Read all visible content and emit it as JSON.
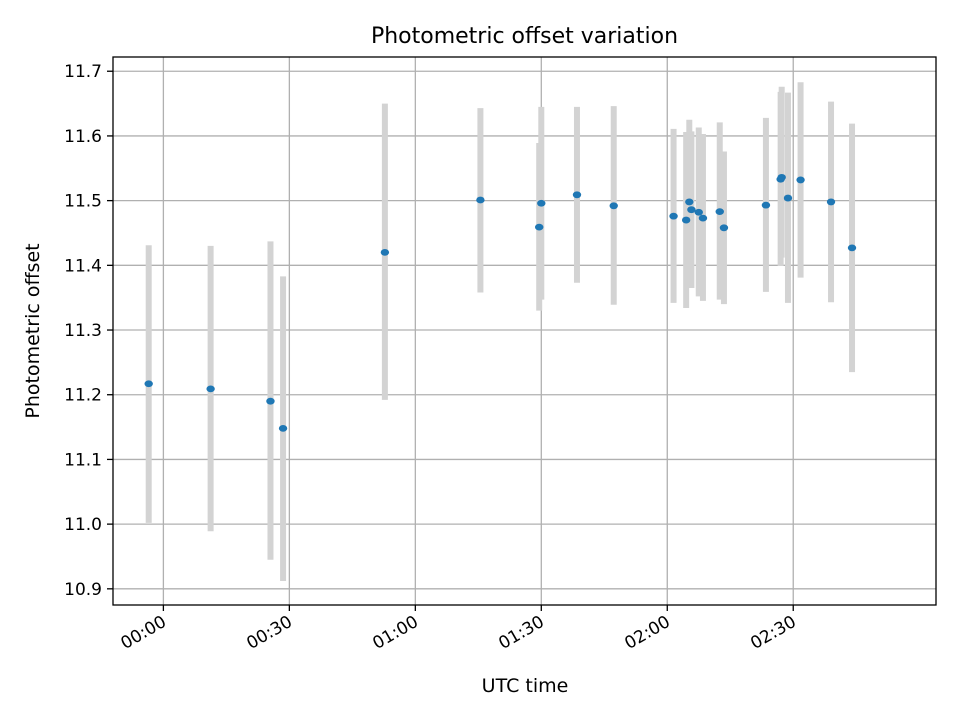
{
  "chart_data": {
    "type": "scatter",
    "title": "Photometric offset variation",
    "xlabel": "UTC time",
    "ylabel": "Photometric offset",
    "grid": true,
    "xlim": [
      "23:48",
      "03:04"
    ],
    "ylim": [
      10.875,
      11.722
    ],
    "xticks": [
      "00:00",
      "00:30",
      "01:00",
      "01:30",
      "02:00",
      "02:30"
    ],
    "yticks": [
      "10.9",
      "11.0",
      "11.1",
      "11.2",
      "11.3",
      "11.4",
      "11.5",
      "11.6",
      "11.7"
    ],
    "colors": {
      "marker": "#1f77b4",
      "errorbar": "#d3d3d3",
      "grid": "#b0b0b0"
    },
    "series": [
      {
        "points": [
          {
            "x": "23:56:30",
            "y": 11.217,
            "ymin": 11.002,
            "ymax": 11.431
          },
          {
            "x": "00:11:15",
            "y": 11.209,
            "ymin": 10.989,
            "ymax": 11.43
          },
          {
            "x": "00:25:30",
            "y": 11.19,
            "ymin": 10.945,
            "ymax": 11.437
          },
          {
            "x": "00:28:30",
            "y": 11.148,
            "ymin": 10.912,
            "ymax": 11.383
          },
          {
            "x": "00:52:45",
            "y": 11.42,
            "ymin": 11.192,
            "ymax": 11.65
          },
          {
            "x": "01:15:30",
            "y": 11.501,
            "ymin": 11.358,
            "ymax": 11.643
          },
          {
            "x": "01:29:30",
            "y": 11.459,
            "ymin": 11.33,
            "ymax": 11.589
          },
          {
            "x": "01:30:00",
            "y": 11.496,
            "ymin": 11.347,
            "ymax": 11.645
          },
          {
            "x": "01:38:30",
            "y": 11.509,
            "ymin": 11.373,
            "ymax": 11.645
          },
          {
            "x": "01:47:15",
            "y": 11.492,
            "ymin": 11.339,
            "ymax": 11.646
          },
          {
            "x": "02:01:30",
            "y": 11.476,
            "ymin": 11.342,
            "ymax": 11.611
          },
          {
            "x": "02:04:30",
            "y": 11.47,
            "ymin": 11.334,
            "ymax": 11.606
          },
          {
            "x": "02:05:15",
            "y": 11.498,
            "ymin": 11.371,
            "ymax": 11.625
          },
          {
            "x": "02:05:45",
            "y": 11.486,
            "ymin": 11.365,
            "ymax": 11.607
          },
          {
            "x": "02:07:30",
            "y": 11.482,
            "ymin": 11.352,
            "ymax": 11.613
          },
          {
            "x": "02:08:30",
            "y": 11.473,
            "ymin": 11.345,
            "ymax": 11.603
          },
          {
            "x": "02:12:30",
            "y": 11.483,
            "ymin": 11.347,
            "ymax": 11.621
          },
          {
            "x": "02:13:30",
            "y": 11.458,
            "ymin": 11.34,
            "ymax": 11.576
          },
          {
            "x": "02:23:30",
            "y": 11.493,
            "ymin": 11.359,
            "ymax": 11.628
          },
          {
            "x": "02:27:00",
            "y": 11.533,
            "ymin": 11.399,
            "ymax": 11.668
          },
          {
            "x": "02:27:15",
            "y": 11.536,
            "ymin": 11.412,
            "ymax": 11.676
          },
          {
            "x": "02:28:45",
            "y": 11.504,
            "ymin": 11.342,
            "ymax": 11.667
          },
          {
            "x": "02:31:45",
            "y": 11.532,
            "ymin": 11.381,
            "ymax": 11.683
          },
          {
            "x": "02:39:00",
            "y": 11.498,
            "ymin": 11.343,
            "ymax": 11.653
          },
          {
            "x": "02:44:00",
            "y": 11.427,
            "ymin": 11.235,
            "ymax": 11.619
          }
        ]
      }
    ]
  }
}
